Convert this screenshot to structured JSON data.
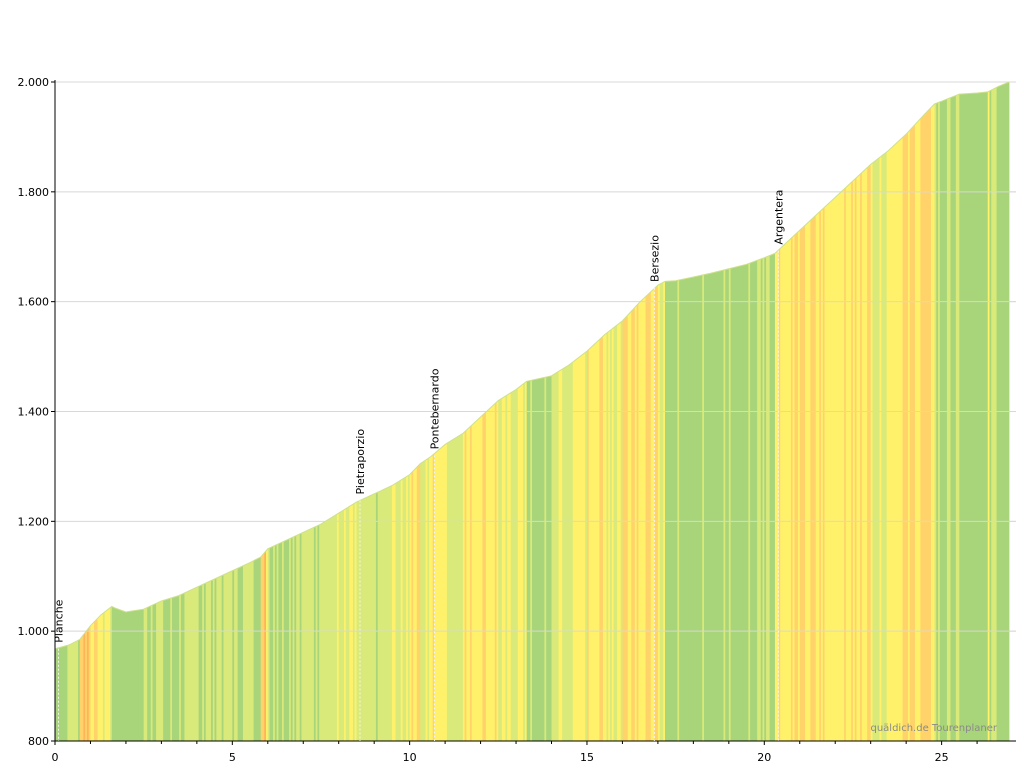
{
  "chart_data": {
    "type": "area",
    "title": "",
    "xlabel": "",
    "ylabel": "",
    "xlim": [
      0,
      26.9
    ],
    "ylim": [
      800,
      2000
    ],
    "x_ticks": [
      0,
      5,
      10,
      15,
      20,
      25
    ],
    "x_tick_labels": [
      "0",
      "5",
      "10",
      "15",
      "20",
      "25"
    ],
    "y_ticks": [
      800,
      1000,
      1200,
      1400,
      1600,
      1800,
      2000
    ],
    "y_tick_labels": [
      "800",
      "1.000",
      "1.200",
      "1.400",
      "1.600",
      "1.800",
      "2.000"
    ],
    "grid": true,
    "series": [
      {
        "x": [
          0,
          0.4,
          0.7,
          1.0,
          1.3,
          1.6,
          1.7,
          2.0,
          2.5,
          3.0,
          3.5,
          4.0,
          4.5,
          5.0,
          5.5,
          5.8,
          6.0,
          6.5,
          7.0,
          7.5,
          8.0,
          8.5,
          9.0,
          9.5,
          10.0,
          10.3,
          10.6,
          11.0,
          11.5,
          12.0,
          12.5,
          13.0,
          13.3,
          14.0,
          14.5,
          15.0,
          15.5,
          16.0,
          16.5,
          17.0,
          17.2,
          17.5,
          18.0,
          18.5,
          19.0,
          19.5,
          20.0,
          20.3,
          20.5,
          21.0,
          21.5,
          22.0,
          22.5,
          23.0,
          23.5,
          24.0,
          24.5,
          24.8,
          25.0,
          25.5,
          26.0,
          26.3,
          26.6,
          26.9
        ],
        "y": [
          968,
          975,
          985,
          1010,
          1030,
          1045,
          1042,
          1035,
          1040,
          1055,
          1065,
          1080,
          1095,
          1110,
          1125,
          1135,
          1150,
          1165,
          1180,
          1195,
          1215,
          1235,
          1250,
          1265,
          1285,
          1305,
          1318,
          1340,
          1360,
          1390,
          1420,
          1440,
          1455,
          1465,
          1485,
          1510,
          1540,
          1565,
          1600,
          1630,
          1637,
          1638,
          1645,
          1652,
          1660,
          1668,
          1680,
          1688,
          1700,
          1730,
          1760,
          1790,
          1820,
          1850,
          1875,
          1905,
          1940,
          1960,
          1965,
          1978,
          1980,
          1982,
          1992,
          2000
        ]
      }
    ],
    "annotations": [
      {
        "label": "Planche",
        "x": 0.1,
        "elevation": 968
      },
      {
        "label": "Pietraporzio",
        "x": 8.6,
        "elevation": 1238
      },
      {
        "label": "Pontebernardo",
        "x": 10.7,
        "elevation": 1320
      },
      {
        "label": "Bersezio",
        "x": 16.9,
        "elevation": 1625
      },
      {
        "label": "Argentera",
        "x": 20.4,
        "elevation": 1693
      }
    ],
    "gradient_colors": {
      "flat": "#a8d47a",
      "gentle": "#d9ea7a",
      "moderate": "#fff26a",
      "steep": "#ffd36a",
      "very_steep": "#ffb45a"
    },
    "watermark": "quäldich.de Tourenplaner"
  }
}
